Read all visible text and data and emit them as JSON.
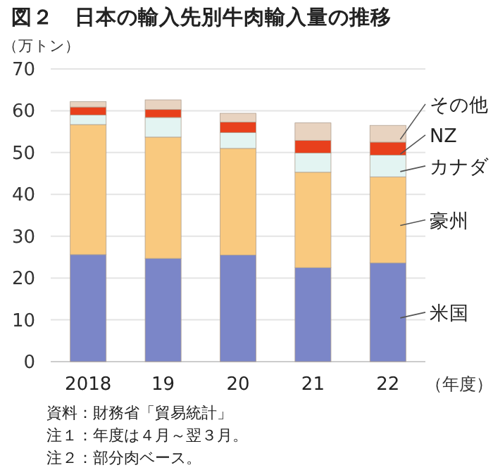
{
  "chart_data": {
    "type": "bar",
    "stacked": true,
    "title": "図２　日本の輸入先別牛肉輸入量の推移",
    "ylabel": "（万トン）",
    "xlabel": "（年度）",
    "categories": [
      "2018",
      "19",
      "20",
      "21",
      "22"
    ],
    "series": [
      {
        "name": "米国",
        "color": "#7b86c8",
        "values": [
          25.6,
          24.7,
          25.5,
          22.5,
          23.6
        ]
      },
      {
        "name": "豪州",
        "color": "#f9c97f",
        "values": [
          31.1,
          29.0,
          25.5,
          22.8,
          20.6
        ]
      },
      {
        "name": "カナダ",
        "color": "#e3f4f2",
        "values": [
          2.3,
          4.7,
          3.8,
          4.6,
          5.2
        ]
      },
      {
        "name": "NZ",
        "color": "#e8401c",
        "values": [
          1.9,
          1.9,
          2.5,
          3.0,
          3.1
        ]
      },
      {
        "name": "その他",
        "color": "#e8d3c0",
        "values": [
          1.3,
          2.3,
          2.1,
          4.2,
          4.0
        ]
      }
    ],
    "ylim": [
      0,
      70
    ],
    "yticks": [
      0,
      10,
      20,
      30,
      40,
      50,
      60,
      70
    ],
    "grid": "y",
    "legend": "right",
    "annotations": [
      "資料：財務省「貿易統計」",
      "注１：年度は４月～翌３月。",
      "注２：部分肉ベース。"
    ]
  }
}
